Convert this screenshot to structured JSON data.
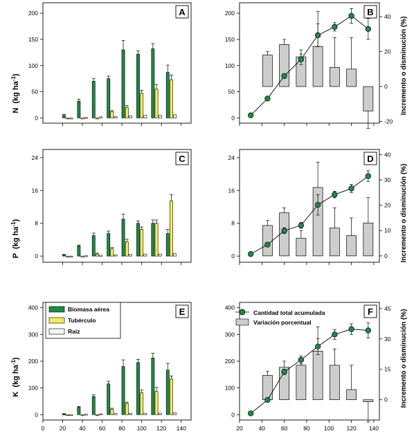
{
  "colors": {
    "biomasa": "#1e8a45",
    "tuberculo": "#f4ec5c",
    "raiz": "#f4f4f4",
    "variacion": "#cdcdcd",
    "acumulada": "#1e8a45",
    "stroke": "#000000"
  },
  "labels": {
    "y_N": "N",
    "y_P": "P",
    "y_K": "K",
    "y_unit": "(kg ha",
    "y_unit_exp": "-1",
    "y_unit_close": ")",
    "y_right": "Incremento o disminución (%)"
  },
  "legends": {
    "left": [
      "Biomasa aérea",
      "Tubérculo",
      "Raíz"
    ],
    "right": [
      "Cantidad total acumulada",
      "Variación porcentual"
    ]
  },
  "chart_data": [
    {
      "panel": "A",
      "type": "bar",
      "nutrient": "N",
      "xlim": [
        0,
        150
      ],
      "ylim": [
        -10,
        220
      ],
      "xticks": [
        20,
        40,
        60,
        80,
        100,
        120,
        140
      ],
      "yticks": [
        0,
        50,
        100,
        150,
        200
      ],
      "x": [
        25,
        40,
        55,
        70,
        85,
        100,
        115,
        130
      ],
      "series": [
        {
          "name": "Biomasa aérea",
          "values": [
            5,
            32,
            70,
            75,
            130,
            122,
            132,
            87
          ],
          "err": [
            2,
            4,
            5,
            5,
            18,
            6,
            10,
            14
          ]
        },
        {
          "name": "Tubérculo",
          "values": [
            0,
            0,
            0,
            12,
            20,
            47,
            55,
            73
          ],
          "err": [
            0,
            0,
            0,
            2,
            4,
            6,
            9,
            9
          ]
        },
        {
          "name": "Raíz",
          "values": [
            0,
            1,
            2,
            3,
            4,
            5,
            5,
            6
          ],
          "err": [
            0,
            0,
            0,
            0,
            0,
            0,
            0,
            0
          ]
        }
      ]
    },
    {
      "panel": "B",
      "type": "bar+line",
      "nutrient": "N",
      "xlim": [
        20,
        145
      ],
      "ylim": [
        -10,
        220
      ],
      "y2lim": [
        -21,
        48
      ],
      "xticks": [
        20,
        40,
        60,
        80,
        100,
        120,
        140
      ],
      "yticks": [
        0,
        50,
        100,
        150,
        200
      ],
      "y2ticks": [
        -20,
        0,
        20,
        40
      ],
      "line": {
        "name": "Cantidad total acumulada",
        "x": [
          30,
          45,
          60,
          75,
          90,
          105,
          120,
          135
        ],
        "values": [
          5,
          37,
          80,
          112,
          158,
          174,
          195,
          170
        ],
        "err": [
          0,
          4,
          4,
          10,
          22,
          8,
          14,
          20
        ]
      },
      "bars": {
        "name": "Variación porcentual",
        "x": [
          45,
          60,
          75,
          90,
          105,
          120,
          135
        ],
        "values": [
          18,
          24,
          17,
          23,
          11,
          10,
          -14
        ],
        "err": [
          2,
          3,
          4,
          20,
          17,
          18,
          10
        ]
      }
    },
    {
      "panel": "C",
      "type": "bar",
      "nutrient": "P",
      "xlim": [
        0,
        150
      ],
      "ylim": [
        -1.5,
        26
      ],
      "xticks": [
        20,
        40,
        60,
        80,
        100,
        120,
        140
      ],
      "yticks": [
        0,
        8,
        16,
        24
      ],
      "x": [
        25,
        40,
        55,
        70,
        85,
        100,
        115,
        130
      ],
      "series": [
        {
          "name": "Biomasa aérea",
          "values": [
            0.3,
            2.5,
            5.0,
            5.5,
            9.0,
            8.0,
            8.0,
            5.5
          ],
          "err": [
            0.1,
            0.2,
            0.6,
            0.6,
            1.2,
            0.6,
            0.8,
            1.0
          ]
        },
        {
          "name": "Tubérculo",
          "values": [
            0,
            0,
            0.5,
            1.8,
            3.5,
            6.5,
            8.0,
            13.5
          ],
          "err": [
            0,
            0,
            0.2,
            0.3,
            0.6,
            0.6,
            0.8,
            1.5
          ]
        },
        {
          "name": "Raíz",
          "values": [
            0,
            0.1,
            0.2,
            0.3,
            0.4,
            0.5,
            0.5,
            0.6
          ],
          "err": [
            0,
            0,
            0,
            0,
            0,
            0,
            0,
            0
          ]
        }
      ]
    },
    {
      "panel": "D",
      "type": "bar+line",
      "nutrient": "P",
      "xlim": [
        20,
        145
      ],
      "ylim": [
        -1.5,
        26
      ],
      "y2lim": [
        -2.5,
        42
      ],
      "xticks": [
        20,
        40,
        60,
        80,
        100,
        120,
        140
      ],
      "yticks": [
        0,
        8,
        16,
        24
      ],
      "y2ticks": [
        0,
        10,
        20,
        30,
        40
      ],
      "line": {
        "name": "Cantidad total acumulada",
        "x": [
          30,
          45,
          60,
          75,
          90,
          105,
          120,
          135
        ],
        "values": [
          0.5,
          2.8,
          6.2,
          7.5,
          12.5,
          15.0,
          16.5,
          19.5
        ],
        "err": [
          0,
          0.4,
          0.7,
          0.7,
          2.5,
          0.8,
          1.0,
          1.3
        ]
      },
      "bars": {
        "name": "Variación porcentual",
        "x": [
          45,
          60,
          75,
          90,
          105,
          120,
          135
        ],
        "values": [
          12,
          17,
          7,
          27,
          11,
          8,
          13
        ],
        "err": [
          2,
          2,
          3,
          10,
          8,
          7,
          10
        ]
      }
    },
    {
      "panel": "E",
      "type": "bar",
      "nutrient": "K",
      "xlim": [
        0,
        150
      ],
      "ylim": [
        -20,
        420
      ],
      "xticks": [
        0,
        20,
        40,
        60,
        80,
        100,
        120,
        140
      ],
      "yticks": [
        0,
        100,
        200,
        300,
        400
      ],
      "x": [
        25,
        40,
        55,
        70,
        85,
        100,
        115,
        130
      ],
      "series": [
        {
          "name": "Biomasa aérea",
          "values": [
            3,
            28,
            68,
            115,
            180,
            195,
            212,
            167
          ],
          "err": [
            1,
            3,
            6,
            10,
            25,
            12,
            18,
            25
          ]
        },
        {
          "name": "Tubérculo",
          "values": [
            0,
            0,
            0,
            20,
            42,
            82,
            87,
            133
          ],
          "err": [
            0,
            0,
            0,
            4,
            5,
            10,
            15,
            12
          ]
        },
        {
          "name": "Raíz",
          "values": [
            0,
            2,
            3,
            4,
            5,
            5,
            6,
            7
          ],
          "err": [
            0,
            0,
            0,
            0,
            0,
            0,
            0,
            0
          ]
        }
      ]
    },
    {
      "panel": "F",
      "type": "bar+line",
      "nutrient": "K",
      "xlim": [
        20,
        145
      ],
      "ylim": [
        -20,
        420
      ],
      "y2lim": [
        -10,
        48
      ],
      "xticks": [
        20,
        40,
        60,
        80,
        100,
        120,
        140
      ],
      "yticks": [
        0,
        100,
        200,
        300,
        400
      ],
      "y2ticks": [
        0,
        15,
        30,
        45
      ],
      "line": {
        "name": "Cantidad total acumulada",
        "x": [
          30,
          45,
          60,
          75,
          90,
          105,
          120,
          135
        ],
        "values": [
          5,
          55,
          160,
          205,
          255,
          300,
          320,
          315
        ],
        "err": [
          0,
          8,
          10,
          15,
          30,
          18,
          20,
          28
        ]
      },
      "bars": {
        "name": "Variación porcentual",
        "x": [
          45,
          60,
          75,
          90,
          105,
          120,
          135
        ],
        "values": [
          12,
          16,
          17,
          24,
          17,
          5,
          -1
        ],
        "err": [
          2,
          3,
          3,
          12,
          8,
          12,
          10
        ]
      }
    }
  ]
}
